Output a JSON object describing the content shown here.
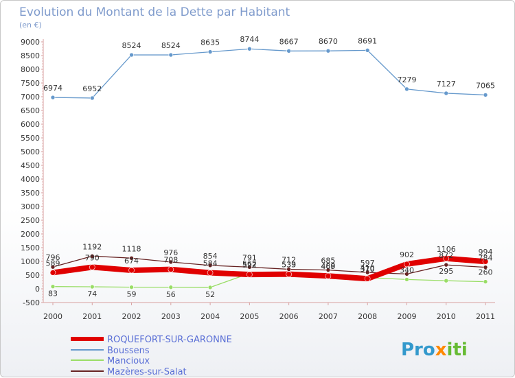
{
  "header": {
    "title": "Evolution du Montant de la Dette par Habitant",
    "subtitle": "(en €)"
  },
  "logo": {
    "text": "Proxiti"
  },
  "chart_data": {
    "type": "line",
    "title": "Evolution du Montant de la Dette par Habitant",
    "subtitle": "(en €)",
    "x": [
      "2000",
      "2001",
      "2002",
      "2003",
      "2004",
      "2005",
      "2006",
      "2007",
      "2008",
      "2009",
      "2010",
      "2011"
    ],
    "ylim": [
      -500,
      9000
    ],
    "yticks": [
      -500,
      0,
      500,
      1000,
      1500,
      2000,
      2500,
      3000,
      3500,
      4000,
      4500,
      5000,
      5500,
      6000,
      6500,
      7000,
      7500,
      8000,
      8500,
      9000
    ],
    "grid": false,
    "legend_position": "bottom-left",
    "series": [
      {
        "name": "ROQUEFORT-SUR-GARONNE",
        "color": "#e00000",
        "values": [
          589,
          790,
          674,
          708,
          584,
          522,
          533,
          469,
          370,
          902,
          1106,
          994
        ],
        "labels": [
          "589",
          "790",
          "674",
          "708",
          "584",
          "522",
          "533",
          "469",
          "370",
          "902",
          "1106",
          "994"
        ]
      },
      {
        "name": "Boussens",
        "color": "#6699cc",
        "values": [
          6974,
          6952,
          8524,
          8524,
          8635,
          8744,
          8667,
          8670,
          8691,
          7279,
          7127,
          7065
        ],
        "labels": [
          "6974",
          "6952",
          "8524",
          "8524",
          "8635",
          "8744",
          "8667",
          "8670",
          "8691",
          "7279",
          "7127",
          "7065"
        ]
      },
      {
        "name": "Mancioux",
        "color": "#99dd66",
        "values": [
          83,
          74,
          59,
          56,
          52,
          562,
          539,
          488,
          410,
          340,
          295,
          260
        ],
        "labels": [
          "83",
          "74",
          "59",
          "56",
          "52",
          "562",
          "539",
          "488",
          "410",
          "340",
          "295",
          "260"
        ]
      },
      {
        "name": "Mazères-sur-Salat",
        "color": "#662222",
        "values": [
          796,
          1192,
          1118,
          976,
          854,
          791,
          712,
          685,
          597,
          540,
          872,
          784
        ],
        "labels": [
          "796",
          "1192",
          "1118",
          "976",
          "854",
          "791",
          "712",
          "685",
          "597",
          "",
          "872",
          "784"
        ]
      }
    ]
  }
}
